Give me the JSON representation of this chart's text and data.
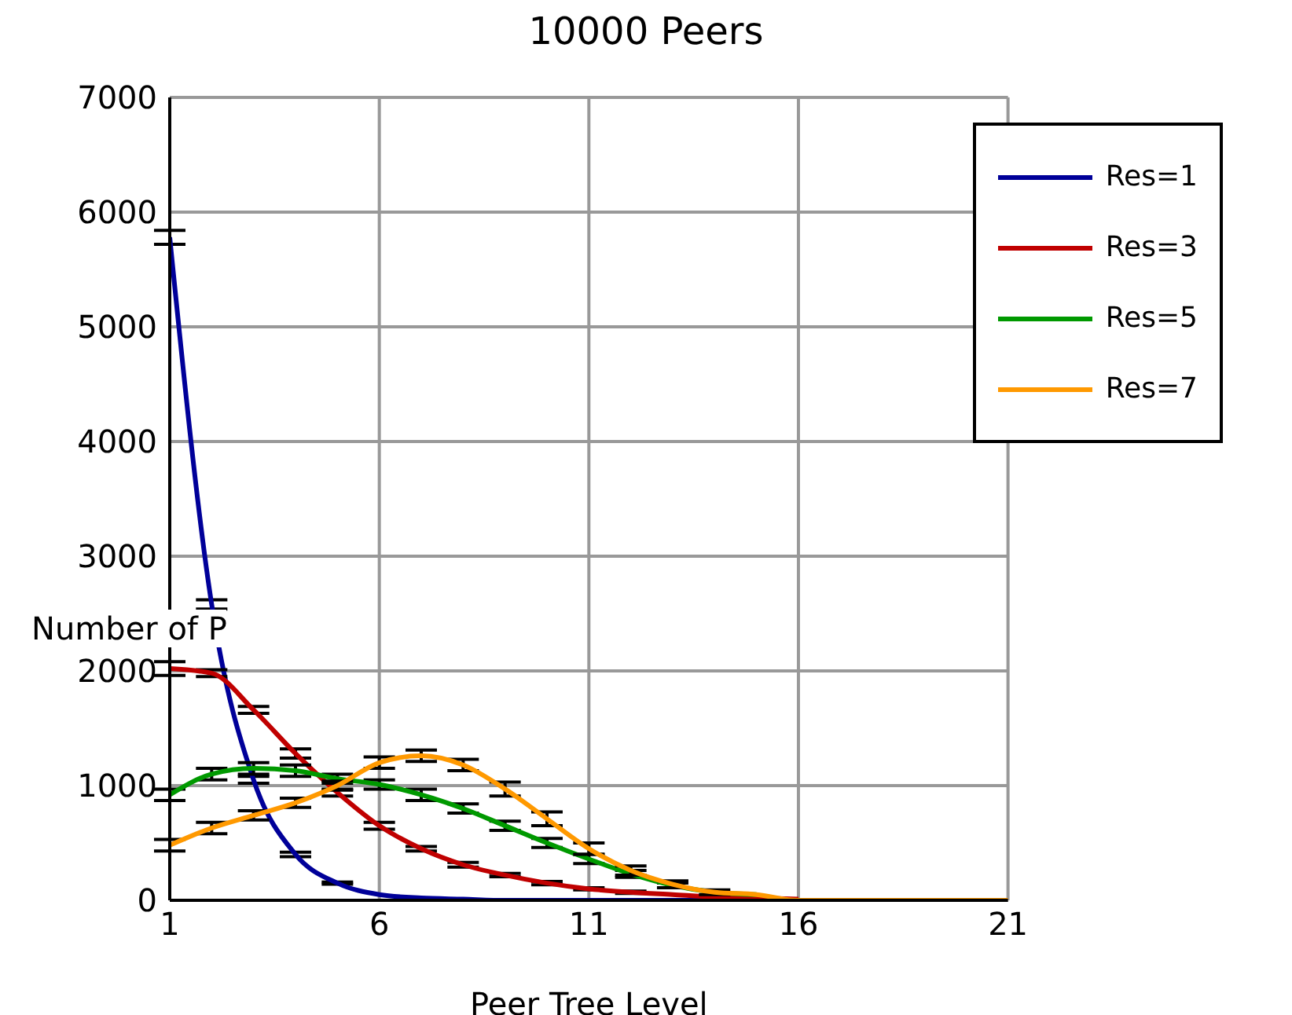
{
  "chart_data": {
    "type": "line",
    "title": "10000 Peers",
    "xlabel": "Peer Tree Level",
    "ylabel": "Number of P",
    "x": [
      1,
      2,
      3,
      4,
      5,
      6,
      7,
      8,
      9,
      10,
      11,
      12,
      13,
      14,
      15,
      16,
      17,
      18,
      19,
      20,
      21
    ],
    "series": [
      {
        "name": "Res=1",
        "color": "#000099",
        "values": [
          5780,
          2580,
          1050,
          400,
          150,
          50,
          20,
          10,
          0,
          0,
          0,
          0,
          0,
          0,
          0,
          null,
          null,
          null,
          null,
          null,
          null
        ],
        "errors": [
          60,
          40,
          30,
          20,
          10,
          null,
          null,
          null,
          null,
          null,
          null,
          null,
          null,
          null,
          null,
          null,
          null,
          null,
          null,
          null,
          null
        ]
      },
      {
        "name": "Res=3",
        "color": "#c00000",
        "values": [
          2020,
          1980,
          1660,
          1280,
          940,
          650,
          450,
          310,
          220,
          150,
          100,
          70,
          50,
          30,
          20,
          10,
          null,
          null,
          null,
          null,
          null
        ],
        "errors": [
          60,
          30,
          30,
          40,
          30,
          30,
          20,
          20,
          15,
          15,
          10,
          10,
          null,
          null,
          null,
          null,
          null,
          null,
          null,
          null,
          null
        ]
      },
      {
        "name": "Res=5",
        "color": "#009900",
        "values": [
          920,
          1100,
          1150,
          1130,
          1060,
          1010,
          920,
          800,
          650,
          500,
          360,
          230,
          130,
          70,
          50,
          null,
          null,
          null,
          null,
          null,
          null
        ],
        "errors": [
          50,
          50,
          50,
          50,
          40,
          40,
          50,
          40,
          40,
          40,
          40,
          30,
          20,
          null,
          null,
          null,
          null,
          null,
          null,
          null,
          null
        ]
      },
      {
        "name": "Res=7",
        "color": "#ff9900",
        "values": [
          480,
          630,
          740,
          850,
          1000,
          1200,
          1260,
          1180,
          970,
          710,
          450,
          260,
          140,
          70,
          50,
          0,
          0,
          0,
          0,
          0,
          0
        ],
        "errors": [
          50,
          50,
          40,
          40,
          40,
          50,
          50,
          50,
          60,
          60,
          50,
          40,
          30,
          20,
          null,
          null,
          null,
          null,
          null,
          null,
          null
        ]
      }
    ],
    "xlim": [
      1,
      21
    ],
    "xticks": [
      1,
      6,
      11,
      16,
      21
    ],
    "ylim": [
      0,
      7000
    ],
    "yticks": [
      0,
      1000,
      2000,
      3000,
      4000,
      5000,
      6000,
      7000
    ],
    "grid": true,
    "legend": "top right",
    "marker": "none",
    "line_style": "solid"
  }
}
